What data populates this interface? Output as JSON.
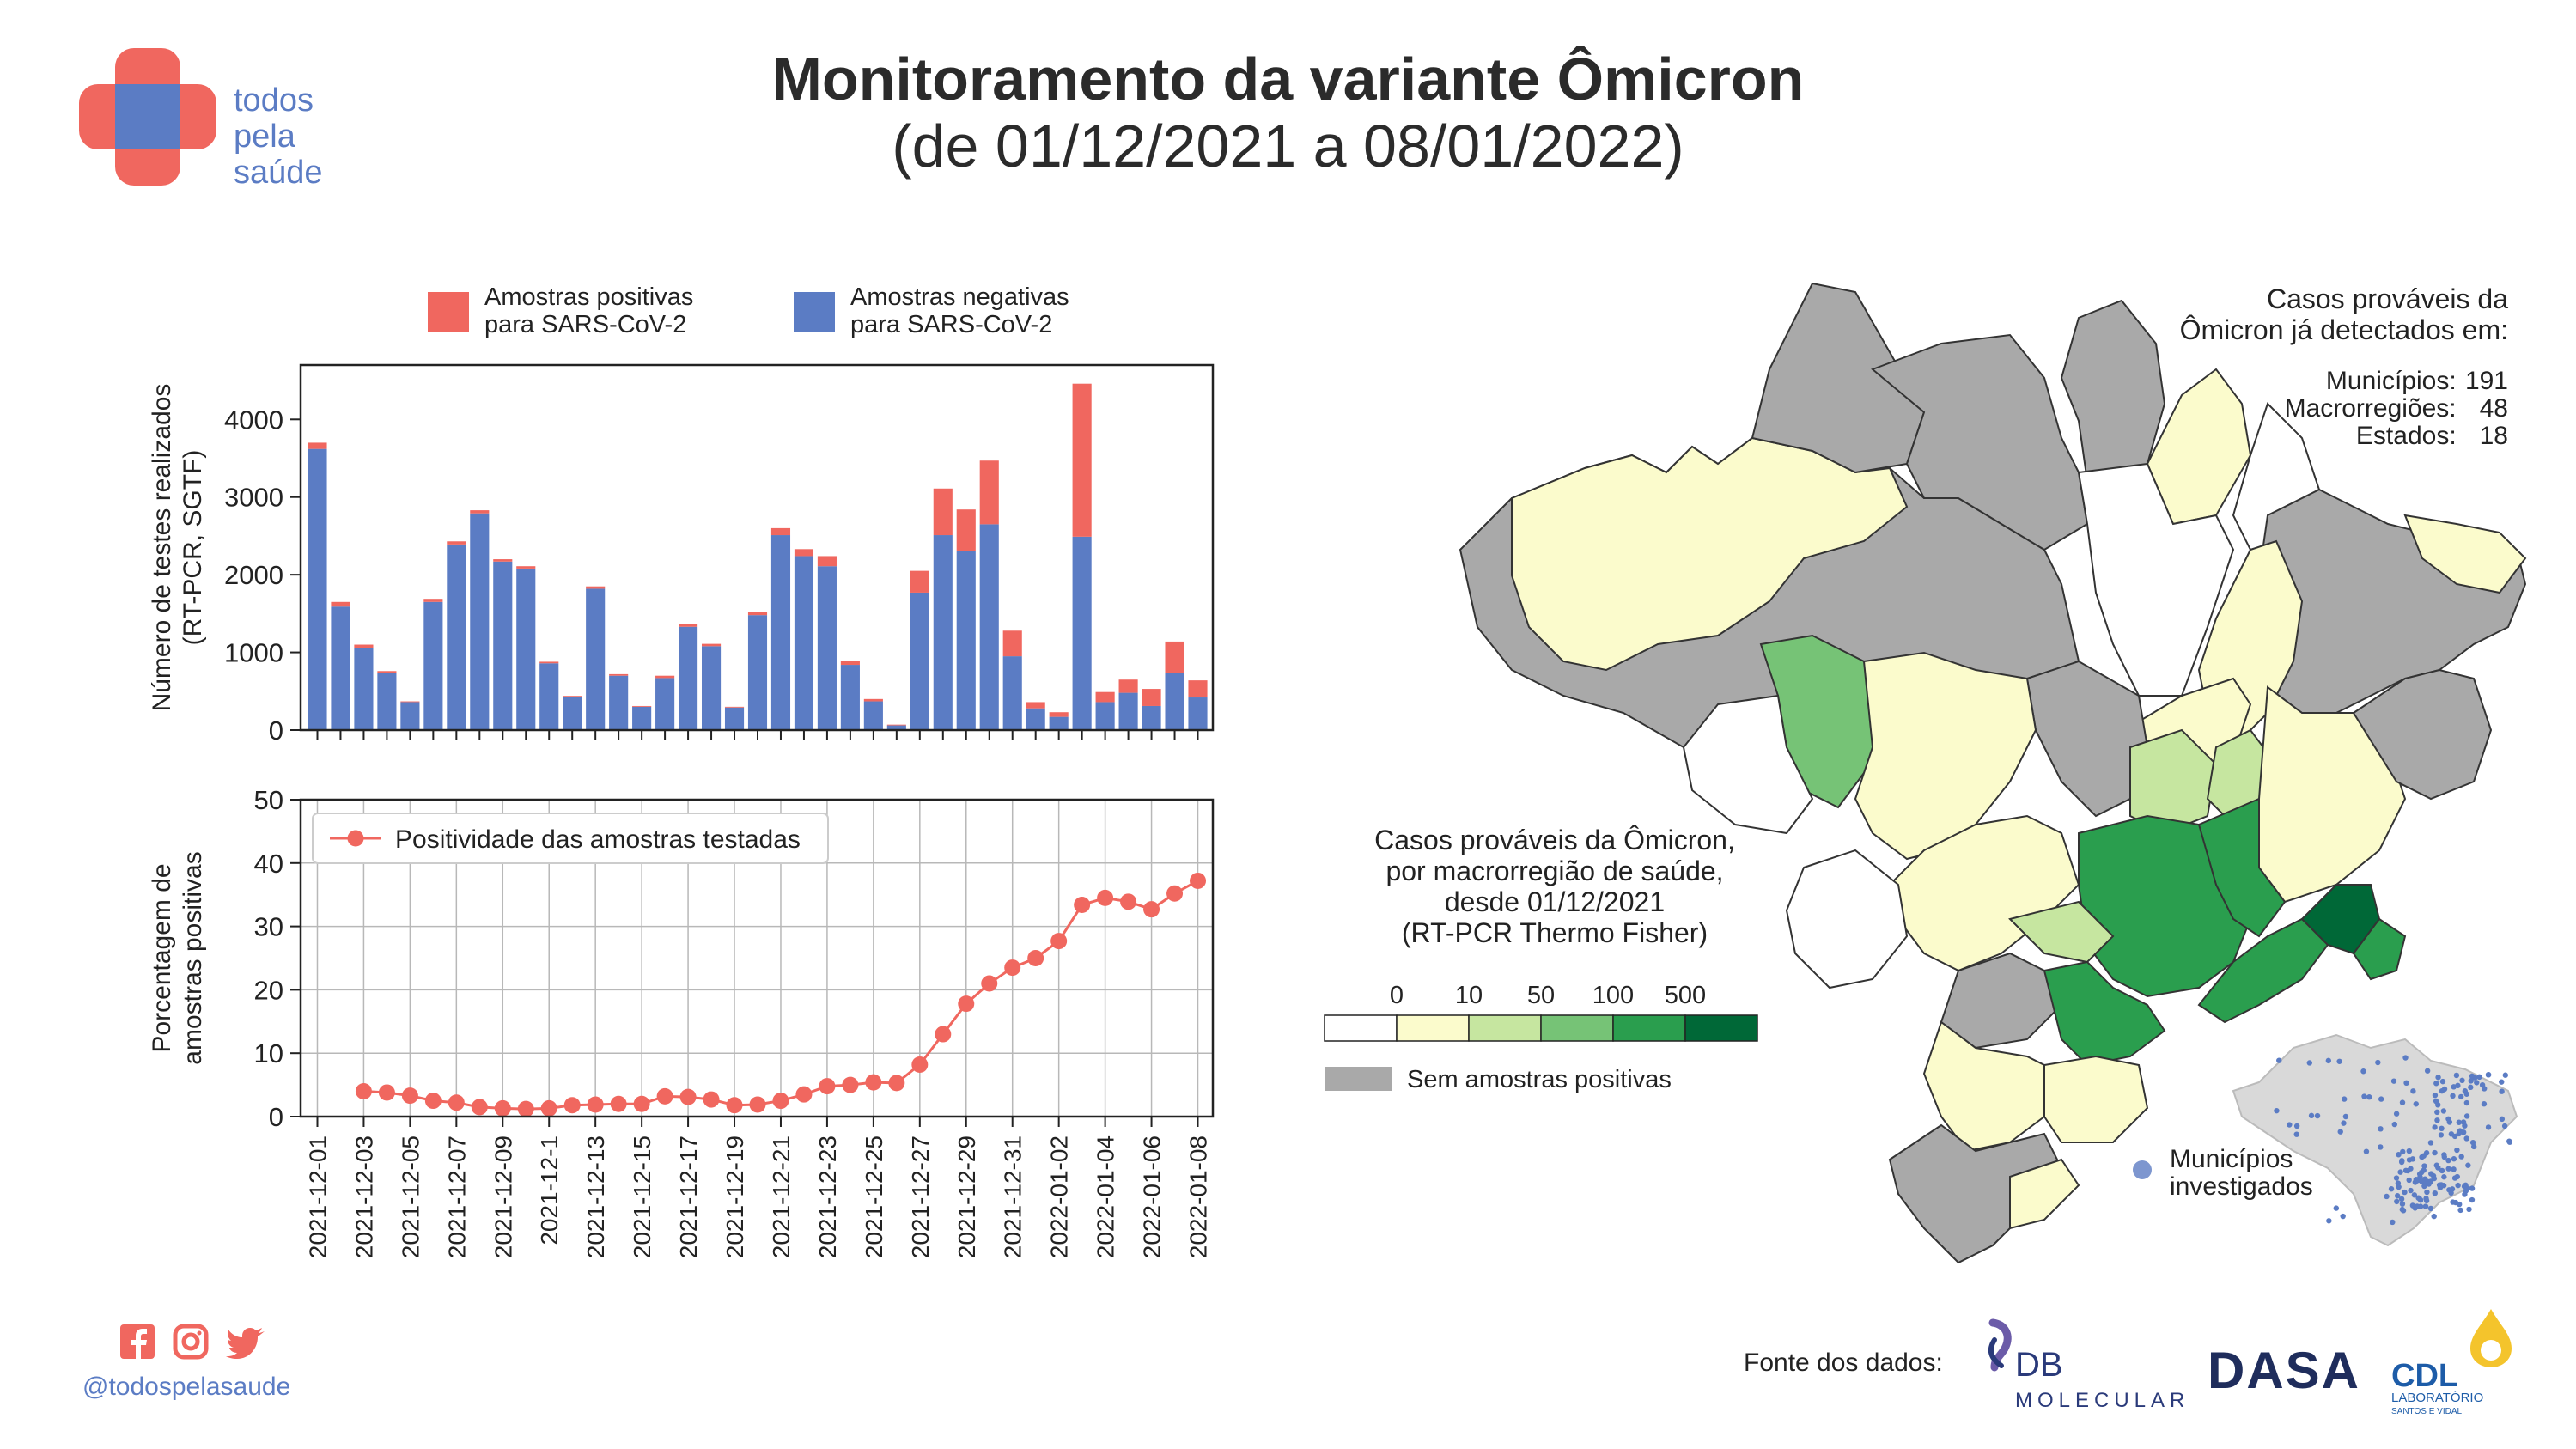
{
  "header": {
    "title": "Monitoramento da variante Ômicron",
    "subtitle": "(de 01/12/2021 a 08/01/2022)"
  },
  "logo": {
    "lines": [
      "todos",
      "pela",
      "saúde"
    ],
    "color_red": "#f0675f",
    "color_blue": "#5b7cc4"
  },
  "social": {
    "handle": "@todospelasaude",
    "icons": [
      "facebook-icon",
      "instagram-icon",
      "twitter-icon"
    ]
  },
  "footer": {
    "source_label": "Fonte dos dados:",
    "partners": [
      "DB",
      "MOLECULAR",
      "DASA",
      "CDL",
      "LABORATÓRIO",
      "SANTOS E VIDAL"
    ]
  },
  "chart_data": [
    {
      "type": "bar",
      "stacked": true,
      "ylabel": "Número de testes realizados\n(RT-PCR, SGTF)",
      "ylim": [
        0,
        4700
      ],
      "yticks": [
        0,
        1000,
        2000,
        3000,
        4000
      ],
      "legend_placement": "top",
      "categories": [
        "2021-12-01",
        "2021-12-02",
        "2021-12-03",
        "2021-12-04",
        "2021-12-05",
        "2021-12-06",
        "2021-12-07",
        "2021-12-08",
        "2021-12-09",
        "2021-12-10",
        "2021-12-11",
        "2021-12-12",
        "2021-12-13",
        "2021-12-14",
        "2021-12-15",
        "2021-12-16",
        "2021-12-17",
        "2021-12-18",
        "2021-12-19",
        "2021-12-20",
        "2021-12-21",
        "2021-12-22",
        "2021-12-23",
        "2021-12-24",
        "2021-12-25",
        "2021-12-26",
        "2021-12-27",
        "2021-12-28",
        "2021-12-29",
        "2021-12-30",
        "2021-12-31",
        "2022-01-01",
        "2022-01-02",
        "2022-01-03",
        "2022-01-04",
        "2022-01-05",
        "2022-01-06",
        "2022-01-07",
        "2022-01-08"
      ],
      "series": [
        {
          "name": "Amostras negativas\npara SARS-CoV-2",
          "color": "#5b7cc4",
          "values": [
            3620,
            1590,
            1060,
            740,
            360,
            1650,
            2390,
            2790,
            2170,
            2080,
            860,
            430,
            1820,
            700,
            300,
            670,
            1330,
            1080,
            290,
            1480,
            2510,
            2240,
            2110,
            840,
            370,
            60,
            1770,
            2510,
            2310,
            2650,
            950,
            280,
            170,
            2490,
            360,
            480,
            310,
            730,
            420
          ]
        },
        {
          "name": "Amostras positivas\npara SARS-CoV-2",
          "color": "#f0675f",
          "values": [
            80,
            60,
            40,
            20,
            10,
            40,
            40,
            40,
            30,
            30,
            20,
            10,
            30,
            20,
            10,
            30,
            40,
            30,
            10,
            40,
            90,
            90,
            130,
            50,
            30,
            10,
            280,
            600,
            530,
            820,
            330,
            80,
            60,
            1970,
            130,
            170,
            220,
            410,
            220
          ]
        }
      ]
    },
    {
      "type": "line",
      "ylabel": "Porcentagem de\namostras positivas",
      "ylim": [
        0,
        50
      ],
      "yticks": [
        0,
        10,
        20,
        30,
        40,
        50
      ],
      "grid": true,
      "legend_placement": "top-left",
      "xtick_labels": [
        "2021-12-01",
        "2021-12-03",
        "2021-12-05",
        "2021-12-07",
        "2021-12-09",
        "2021-12-1",
        "2021-12-13",
        "2021-12-15",
        "2021-12-17",
        "2021-12-19",
        "2021-12-21",
        "2021-12-23",
        "2021-12-25",
        "2021-12-27",
        "2021-12-29",
        "2021-12-31",
        "2022-01-02",
        "2022-01-04",
        "2022-01-06",
        "2022-01-08"
      ],
      "x": [
        "2021-12-03",
        "2021-12-04",
        "2021-12-05",
        "2021-12-06",
        "2021-12-07",
        "2021-12-08",
        "2021-12-09",
        "2021-12-10",
        "2021-12-11",
        "2021-12-12",
        "2021-12-13",
        "2021-12-14",
        "2021-12-15",
        "2021-12-16",
        "2021-12-17",
        "2021-12-18",
        "2021-12-19",
        "2021-12-20",
        "2021-12-21",
        "2021-12-22",
        "2021-12-23",
        "2021-12-24",
        "2021-12-25",
        "2021-12-26",
        "2021-12-27",
        "2021-12-28",
        "2021-12-29",
        "2021-12-30",
        "2021-12-31",
        "2022-01-01",
        "2022-01-02",
        "2022-01-03",
        "2022-01-04",
        "2022-01-05",
        "2022-01-06",
        "2022-01-07",
        "2022-01-08"
      ],
      "series": [
        {
          "name": "Positividade das amostras testadas",
          "color": "#f0675f",
          "values": [
            4.0,
            3.8,
            3.3,
            2.5,
            2.2,
            1.5,
            1.3,
            1.2,
            1.3,
            1.8,
            1.9,
            2.0,
            2.0,
            3.2,
            3.1,
            2.7,
            1.8,
            1.9,
            2.5,
            3.5,
            4.8,
            5.0,
            5.4,
            5.3,
            8.2,
            13.0,
            17.8,
            21.0,
            23.5,
            25.0,
            27.7,
            33.4,
            34.5,
            33.9,
            32.7,
            35.2,
            37.2
          ]
        }
      ]
    },
    {
      "type": "map",
      "title": "Casos prováveis da Ômicron,\npor macrorregião de saúde,\ndesde 01/12/2021\n(RT-PCR Thermo Fisher)",
      "legend": {
        "bins": [
          "0",
          "10",
          "50",
          "100",
          "500"
        ],
        "colors": [
          "#ffffff",
          "#fbfbcc",
          "#c6e6a0",
          "#76c376",
          "#2a9e4e",
          "#006837"
        ],
        "no_data_label": "Sem amostras positivas",
        "no_data_color": "#a9a9a9"
      },
      "summary": {
        "title": "Casos prováveis da\nÔmicron já detectados em:",
        "rows": [
          {
            "label": "Municípios:",
            "value": "191"
          },
          {
            "label": "Macrorregiões:",
            "value": "48"
          },
          {
            "label": "Estados:",
            "value": "18"
          }
        ]
      },
      "inset": {
        "label": "Municípios\ninvestigados",
        "point_color": "#5b7cc4"
      }
    }
  ]
}
